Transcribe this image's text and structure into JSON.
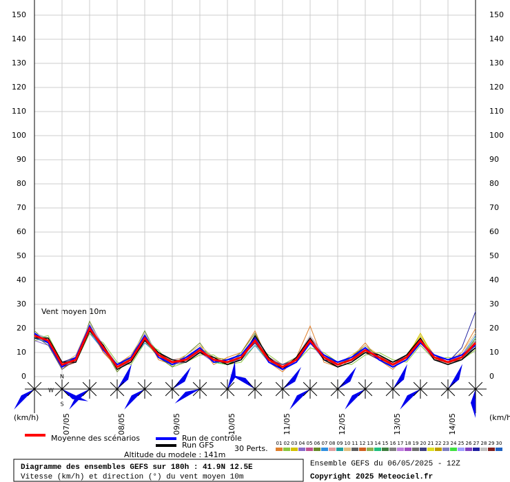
{
  "chart_data": {
    "type": "line",
    "annotation": "Vent moyen 10m",
    "y_unit_left": "(km/h)",
    "y_unit_right": "(km/h)",
    "altitude": "Altitude du modele : 141m",
    "perts_label": "30 Perts.",
    "footer_title": "Diagramme des ensembles GEFS sur 180h : 41.9N 12.5E",
    "footer_subtitle": "Vitesse (km/h) et direction (°) du vent moyen 10m",
    "run_info": "Ensemble GEFS du 06/05/2025 - 12Z",
    "copyright": "Copyright 2025 Meteociel.fr",
    "compass": [
      "N",
      "W",
      "S"
    ],
    "categories": [
      null,
      null,
      "07/05",
      null,
      null,
      null,
      "08/05",
      null,
      null,
      null,
      "09/05",
      null,
      null,
      null,
      "10/05",
      null,
      null,
      null,
      "11/05",
      null,
      null,
      null,
      "12/05",
      null,
      null,
      null,
      "13/05",
      null,
      null,
      null,
      "14/05",
      null,
      null
    ],
    "ylim": [
      0,
      150
    ],
    "yticks": [
      0,
      10,
      20,
      30,
      40,
      50,
      60,
      70,
      80,
      90,
      100,
      110,
      120,
      130,
      140,
      150
    ],
    "grid": true,
    "wind_direction": [
      225,
      115,
      225,
      30,
      225,
      40,
      240,
      15,
      300,
      40,
      225,
      40,
      225,
      30,
      225,
      30,
      180
    ],
    "series": [
      {
        "name": "Moyenne des scénarios",
        "color": "#ff0000",
        "values": [
          17,
          15,
          5,
          7,
          20,
          12,
          4,
          7,
          16,
          9,
          6,
          7,
          11,
          7,
          6,
          8,
          15,
          7,
          4,
          7,
          15,
          8,
          5,
          7,
          11,
          8,
          5,
          8,
          15,
          8,
          6,
          8,
          14
        ]
      },
      {
        "name": "Run de contrôle",
        "color": "#0000ff",
        "values": [
          18,
          14,
          4,
          8,
          21,
          11,
          5,
          8,
          17,
          8,
          5,
          8,
          12,
          6,
          7,
          9,
          16,
          6,
          3,
          6,
          14,
          9,
          6,
          8,
          12,
          7,
          4,
          7,
          14,
          9,
          7,
          9,
          13
        ]
      },
      {
        "name": "Run GFS",
        "color": "#000000",
        "values": [
          16,
          16,
          6,
          6,
          19,
          13,
          3,
          6,
          15,
          10,
          7,
          6,
          10,
          8,
          5,
          7,
          17,
          8,
          3,
          8,
          16,
          7,
          4,
          6,
          10,
          9,
          6,
          9,
          16,
          7,
          5,
          7,
          12
        ]
      },
      {
        "name": "01",
        "color": "#e0802c",
        "values": [
          17,
          14,
          3,
          8,
          22,
          10,
          5,
          9,
          18,
          7,
          5,
          9,
          13,
          5,
          8,
          10,
          19,
          6,
          2,
          8,
          21,
          6,
          4,
          8,
          14,
          7,
          3,
          9,
          17,
          9,
          5,
          10,
          20
        ]
      },
      {
        "name": "02",
        "color": "#8cc63f",
        "values": [
          16,
          17,
          6,
          6,
          18,
          14,
          6,
          5,
          14,
          11,
          4,
          6,
          9,
          9,
          5,
          6,
          13,
          9,
          5,
          6,
          12,
          10,
          6,
          5,
          9,
          10,
          7,
          6,
          13,
          7,
          8,
          7,
          11
        ]
      },
      {
        "name": "03",
        "color": "#d4c200",
        "values": [
          18,
          15,
          4,
          7,
          21,
          12,
          3,
          8,
          17,
          9,
          6,
          7,
          12,
          6,
          6,
          9,
          16,
          7,
          3,
          7,
          16,
          8,
          5,
          9,
          12,
          8,
          4,
          8,
          18,
          8,
          6,
          9,
          15
        ]
      },
      {
        "name": "04",
        "color": "#8a6ac8",
        "values": [
          15,
          13,
          5,
          9,
          19,
          11,
          4,
          7,
          15,
          8,
          7,
          8,
          10,
          8,
          7,
          8,
          14,
          6,
          4,
          6,
          14,
          7,
          6,
          7,
          10,
          9,
          5,
          7,
          14,
          9,
          7,
          8,
          13
        ]
      },
      {
        "name": "05",
        "color": "#c05090",
        "values": [
          17,
          16,
          6,
          7,
          20,
          13,
          5,
          6,
          16,
          10,
          5,
          6,
          11,
          7,
          5,
          7,
          15,
          8,
          5,
          8,
          17,
          9,
          4,
          6,
          11,
          7,
          6,
          9,
          15,
          7,
          5,
          7,
          16
        ]
      },
      {
        "name": "06",
        "color": "#6a8a2a",
        "values": [
          19,
          14,
          4,
          6,
          23,
          12,
          2,
          8,
          19,
          8,
          4,
          9,
          14,
          6,
          6,
          10,
          18,
          7,
          3,
          7,
          15,
          8,
          5,
          8,
          13,
          8,
          5,
          8,
          16,
          8,
          6,
          8,
          12
        ]
      },
      {
        "name": "07",
        "color": "#3090e0",
        "values": [
          16,
          15,
          5,
          8,
          18,
          11,
          4,
          7,
          14,
          9,
          6,
          7,
          10,
          8,
          7,
          7,
          13,
          6,
          4,
          8,
          16,
          7,
          5,
          7,
          10,
          9,
          4,
          7,
          14,
          9,
          7,
          9,
          17
        ]
      },
      {
        "name": "08",
        "color": "#e0a0a0",
        "values": [
          17,
          14,
          6,
          7,
          21,
          12,
          5,
          8,
          17,
          10,
          7,
          8,
          12,
          7,
          6,
          8,
          16,
          8,
          5,
          7,
          15,
          9,
          6,
          8,
          12,
          8,
          6,
          8,
          15,
          8,
          6,
          8,
          14
        ]
      },
      {
        "name": "09",
        "color": "#20a0a0",
        "values": [
          18,
          16,
          4,
          6,
          20,
          13,
          3,
          6,
          16,
          9,
          5,
          6,
          11,
          6,
          5,
          8,
          14,
          7,
          4,
          6,
          14,
          8,
          4,
          6,
          11,
          7,
          5,
          9,
          16,
          7,
          5,
          7,
          13
        ]
      },
      {
        "name": "10",
        "color": "#e0c080",
        "values": [
          16,
          15,
          5,
          9,
          22,
          11,
          4,
          9,
          18,
          8,
          6,
          9,
          13,
          8,
          7,
          9,
          17,
          6,
          3,
          8,
          17,
          7,
          5,
          9,
          13,
          9,
          6,
          8,
          14,
          9,
          7,
          10,
          18
        ]
      },
      {
        "name": "11",
        "color": "#606060",
        "values": [
          17,
          13,
          3,
          7,
          19,
          12,
          5,
          7,
          15,
          9,
          7,
          7,
          10,
          7,
          6,
          7,
          15,
          8,
          4,
          7,
          14,
          8,
          6,
          7,
          10,
          8,
          5,
          7,
          15,
          8,
          6,
          8,
          12
        ]
      },
      {
        "name": "12",
        "color": "#d06020",
        "values": [
          18,
          15,
          6,
          8,
          20,
          10,
          4,
          8,
          16,
          10,
          5,
          8,
          11,
          6,
          5,
          8,
          16,
          7,
          3,
          6,
          16,
          9,
          5,
          8,
          12,
          7,
          4,
          8,
          16,
          7,
          5,
          9,
          15
        ]
      },
      {
        "name": "13",
        "color": "#90b050",
        "values": [
          15,
          16,
          5,
          6,
          18,
          13,
          3,
          6,
          15,
          8,
          6,
          6,
          12,
          8,
          7,
          9,
          14,
          6,
          5,
          8,
          15,
          7,
          4,
          6,
          11,
          9,
          6,
          9,
          14,
          9,
          7,
          7,
          14
        ]
      },
      {
        "name": "14",
        "color": "#20c080",
        "values": [
          17,
          14,
          4,
          7,
          21,
          12,
          5,
          7,
          17,
          9,
          6,
          7,
          10,
          7,
          6,
          8,
          15,
          8,
          4,
          7,
          16,
          8,
          5,
          7,
          10,
          8,
          5,
          8,
          15,
          8,
          6,
          8,
          13
        ]
      },
      {
        "name": "15",
        "color": "#408040",
        "values": [
          18,
          15,
          5,
          8,
          20,
          11,
          4,
          8,
          16,
          9,
          5,
          8,
          11,
          6,
          6,
          8,
          15,
          7,
          4,
          7,
          15,
          8,
          6,
          8,
          11,
          7,
          5,
          8,
          15,
          8,
          6,
          8,
          14
        ]
      },
      {
        "name": "16",
        "color": "#808080",
        "values": [
          16,
          16,
          6,
          7,
          19,
          12,
          4,
          7,
          15,
          10,
          6,
          7,
          12,
          7,
          5,
          7,
          16,
          7,
          3,
          7,
          14,
          8,
          5,
          7,
          12,
          8,
          6,
          8,
          16,
          8,
          5,
          8,
          15
        ]
      },
      {
        "name": "17",
        "color": "#c080e0",
        "values": [
          17,
          15,
          4,
          6,
          22,
          13,
          3,
          7,
          18,
          9,
          7,
          6,
          11,
          8,
          6,
          9,
          17,
          8,
          4,
          8,
          17,
          9,
          4,
          6,
          11,
          9,
          5,
          7,
          14,
          7,
          6,
          9,
          16
        ]
      },
      {
        "name": "18",
        "color": "#a050c0",
        "values": [
          18,
          14,
          5,
          8,
          20,
          11,
          5,
          8,
          16,
          8,
          6,
          8,
          10,
          6,
          7,
          8,
          14,
          6,
          5,
          6,
          15,
          7,
          6,
          8,
          10,
          7,
          5,
          8,
          15,
          9,
          7,
          8,
          13
        ]
      },
      {
        "name": "19",
        "color": "#707070",
        "values": [
          16,
          15,
          6,
          7,
          19,
          12,
          4,
          6,
          15,
          9,
          5,
          7,
          12,
          7,
          6,
          7,
          15,
          7,
          4,
          7,
          16,
          8,
          5,
          7,
          12,
          8,
          4,
          8,
          16,
          8,
          6,
          7,
          14
        ]
      },
      {
        "name": "20",
        "color": "#404080",
        "values": [
          17,
          16,
          5,
          7,
          21,
          12,
          5,
          7,
          17,
          10,
          6,
          7,
          11,
          7,
          5,
          8,
          16,
          8,
          3,
          7,
          14,
          8,
          5,
          7,
          11,
          8,
          6,
          8,
          15,
          8,
          5,
          8,
          15
        ]
      },
      {
        "name": "21",
        "color": "#e0e020",
        "values": [
          18,
          15,
          4,
          8,
          20,
          11,
          4,
          8,
          16,
          9,
          6,
          8,
          11,
          6,
          6,
          8,
          15,
          7,
          4,
          8,
          15,
          9,
          5,
          8,
          11,
          7,
          5,
          9,
          17,
          8,
          6,
          9,
          14
        ]
      },
      {
        "name": "22",
        "color": "#c0a000",
        "values": [
          17,
          14,
          5,
          7,
          19,
          13,
          4,
          7,
          15,
          8,
          7,
          7,
          10,
          8,
          7,
          8,
          14,
          6,
          5,
          7,
          16,
          7,
          6,
          7,
          12,
          9,
          5,
          7,
          14,
          9,
          7,
          8,
          13
        ]
      },
      {
        "name": "23",
        "color": "#8080c0",
        "values": [
          16,
          15,
          6,
          6,
          20,
          12,
          3,
          6,
          16,
          9,
          5,
          6,
          12,
          7,
          6,
          7,
          16,
          8,
          4,
          6,
          15,
          8,
          4,
          6,
          11,
          8,
          6,
          8,
          15,
          7,
          5,
          7,
          15
        ]
      },
      {
        "name": "24",
        "color": "#40e040",
        "values": [
          17,
          16,
          5,
          8,
          21,
          11,
          5,
          8,
          17,
          10,
          6,
          8,
          11,
          6,
          5,
          9,
          15,
          7,
          3,
          8,
          14,
          8,
          5,
          8,
          10,
          8,
          5,
          8,
          16,
          8,
          6,
          8,
          16
        ]
      },
      {
        "name": "25",
        "color": "#a0a0ff",
        "values": [
          18,
          15,
          4,
          7,
          20,
          12,
          4,
          7,
          16,
          9,
          6,
          7,
          10,
          7,
          6,
          8,
          16,
          7,
          4,
          7,
          15,
          9,
          6,
          7,
          11,
          7,
          4,
          8,
          15,
          8,
          6,
          9,
          14
        ]
      },
      {
        "name": "26",
        "color": "#8040c0",
        "values": [
          16,
          14,
          5,
          7,
          19,
          12,
          4,
          7,
          15,
          9,
          5,
          7,
          11,
          7,
          6,
          8,
          15,
          8,
          4,
          7,
          16,
          8,
          5,
          7,
          12,
          8,
          5,
          8,
          14,
          8,
          7,
          8,
          13
        ]
      },
      {
        "name": "27",
        "color": "#2020a0",
        "values": [
          17,
          15,
          6,
          8,
          20,
          11,
          5,
          8,
          16,
          8,
          6,
          8,
          12,
          6,
          7,
          8,
          14,
          7,
          5,
          7,
          15,
          7,
          6,
          8,
          11,
          9,
          6,
          8,
          15,
          9,
          6,
          12,
          27
        ]
      },
      {
        "name": "28",
        "color": "#c0c0c0",
        "values": [
          18,
          16,
          5,
          7,
          22,
          12,
          4,
          7,
          18,
          9,
          7,
          7,
          11,
          8,
          6,
          9,
          17,
          7,
          4,
          8,
          17,
          8,
          5,
          7,
          12,
          8,
          5,
          7,
          16,
          8,
          5,
          8,
          15
        ]
      },
      {
        "name": "29",
        "color": "#802020",
        "values": [
          17,
          15,
          4,
          6,
          20,
          13,
          3,
          6,
          16,
          10,
          6,
          6,
          10,
          7,
          5,
          7,
          15,
          8,
          3,
          6,
          14,
          8,
          4,
          6,
          10,
          7,
          6,
          8,
          15,
          7,
          6,
          7,
          12
        ]
      },
      {
        "name": "30",
        "color": "#2060c0",
        "values": [
          16,
          14,
          5,
          8,
          19,
          11,
          5,
          8,
          15,
          9,
          5,
          8,
          11,
          6,
          6,
          8,
          15,
          6,
          4,
          7,
          15,
          9,
          5,
          8,
          11,
          8,
          5,
          9,
          15,
          8,
          6,
          8,
          14
        ]
      }
    ]
  }
}
